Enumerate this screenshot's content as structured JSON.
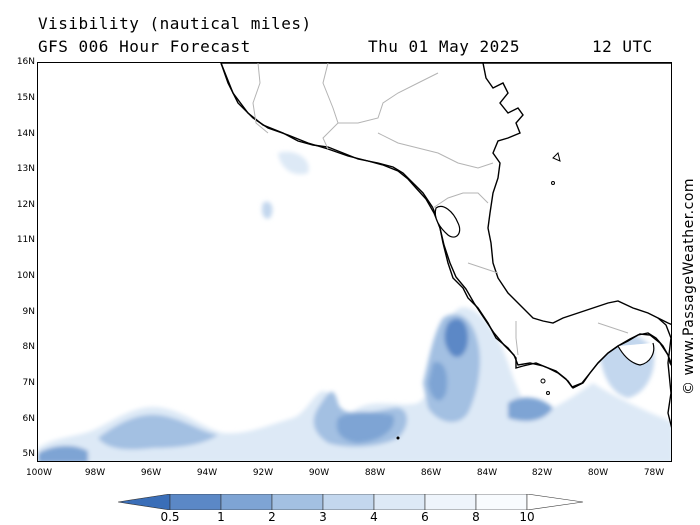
{
  "header": {
    "title": "Visibility (nautical miles)",
    "subtitle": "GFS 006 Hour Forecast",
    "date": "Thu 01 May 2025",
    "time": "12 UTC"
  },
  "credit": "© www.PassageWeather.com",
  "map": {
    "lat_labels": [
      "16N",
      "15N",
      "14N",
      "13N",
      "12N",
      "11N",
      "10N",
      "9N",
      "8N",
      "7N",
      "6N",
      "5N"
    ],
    "lon_labels": [
      "100W",
      "98W",
      "96W",
      "94W",
      "92W",
      "90W",
      "88W",
      "86W",
      "84W",
      "82W",
      "80W",
      "78W"
    ],
    "lat_range": [
      4.85,
      16.0
    ],
    "lon_range": [
      -100.0,
      -77.3
    ],
    "land_color": "#ffffff",
    "coastline_color": "#000000",
    "border_color": "#b4b4b4"
  },
  "legend": {
    "labels": [
      "0.5",
      "1",
      "2",
      "3",
      "4",
      "6",
      "8",
      "10"
    ],
    "colors": [
      "#3a6eb8",
      "#5b88c6",
      "#7ea4d4",
      "#a3c0e2",
      "#c3d7ee",
      "#dde9f6",
      "#f3f8fd",
      "#ffffff"
    ],
    "unit": "nautical miles"
  }
}
